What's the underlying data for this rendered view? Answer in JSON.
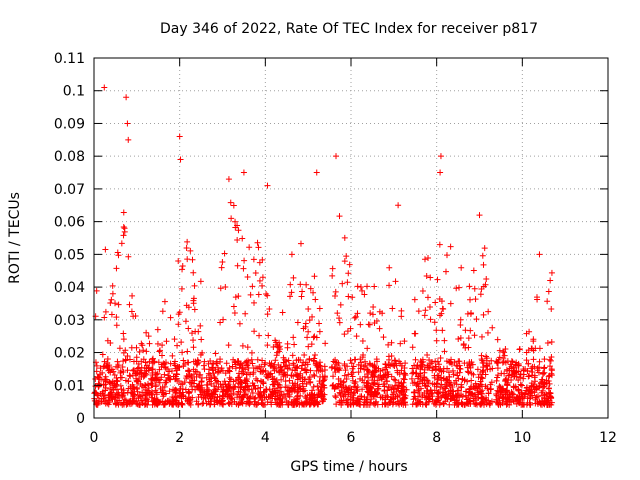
{
  "chart_data": {
    "type": "scatter",
    "title": "Day 346 of 2022, Rate Of TEC Index for receiver p817",
    "xlabel": "GPS time / hours",
    "ylabel": "ROTI / TECUs",
    "xlim": [
      0,
      12
    ],
    "ylim": [
      0,
      0.11
    ],
    "xticks": [
      0,
      2,
      4,
      6,
      8,
      10,
      12
    ],
    "yticks": [
      0,
      0.01,
      0.02,
      0.03,
      0.04,
      0.05,
      0.06,
      0.07,
      0.08,
      0.09,
      0.1,
      0.11
    ],
    "xtick_labels": [
      "0",
      "2",
      "4",
      "6",
      "8",
      "10",
      "12"
    ],
    "ytick_labels": [
      "0",
      "0.01",
      "0.02",
      "0.03",
      "0.04",
      "0.05",
      "0.06",
      "0.07",
      "0.08",
      "0.09",
      "0.1",
      "0.11"
    ],
    "grid": true,
    "marker": "plus",
    "color": "#ff0000",
    "x_data_range": [
      0,
      10.7
    ],
    "notable_points": [
      {
        "x": 0.24,
        "y": 0.101
      },
      {
        "x": 0.75,
        "y": 0.098
      },
      {
        "x": 0.78,
        "y": 0.09
      },
      {
        "x": 0.8,
        "y": 0.085
      },
      {
        "x": 2.0,
        "y": 0.086
      },
      {
        "x": 2.02,
        "y": 0.079
      },
      {
        "x": 5.65,
        "y": 0.08
      },
      {
        "x": 8.1,
        "y": 0.08
      },
      {
        "x": 8.08,
        "y": 0.075
      },
      {
        "x": 3.15,
        "y": 0.073
      },
      {
        "x": 3.5,
        "y": 0.075
      },
      {
        "x": 4.05,
        "y": 0.071
      },
      {
        "x": 5.2,
        "y": 0.075
      },
      {
        "x": 7.1,
        "y": 0.065
      },
      {
        "x": 9.0,
        "y": 0.062
      },
      {
        "x": 10.4,
        "y": 0.05
      },
      {
        "x": 10.65,
        "y": 0.042
      }
    ]
  }
}
